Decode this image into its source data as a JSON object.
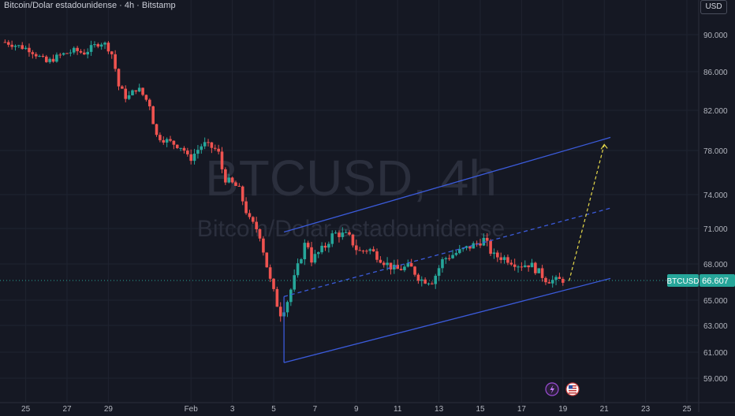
{
  "chart": {
    "legend_text": "Bitcoin/Dolar estadounidense · 4h · Bitstamp",
    "currency_button": "USD",
    "watermark_symbol": "BTCUSD, 4h",
    "watermark_name": "Bitcoin/Dolar estadounidense",
    "symbol_tag": "BTCUSD",
    "last_price_label": "66.607",
    "colors": {
      "background": "#151823",
      "up": "#26a69a",
      "down": "#ef5350",
      "channel": "#3b5bdb",
      "projection": "#e6d94a",
      "tag_bg": "#26a69a"
    },
    "icons": [
      "lightning-icon",
      "us-flag-icon"
    ]
  },
  "chart_data": {
    "type": "candlestick",
    "symbol": "BTCUSD",
    "timeframe": "4h",
    "exchange": "Bitstamp",
    "y_tick_labels": [
      "90.000",
      "86.000",
      "82.000",
      "78.000",
      "74.000",
      "71.000",
      "68.000",
      "65.000",
      "63.000",
      "61.000",
      "59.000"
    ],
    "y_tick_values": [
      90000,
      86000,
      82000,
      78000,
      74000,
      71000,
      68000,
      65000,
      63000,
      61000,
      59000
    ],
    "x_tick_labels": [
      "25",
      "27",
      "29",
      "Feb",
      "3",
      "5",
      "7",
      "9",
      "11",
      "13",
      "15",
      "17",
      "19",
      "21",
      "23",
      "25"
    ],
    "x_tick_days": [
      -7,
      -5,
      -3,
      1,
      3,
      5,
      7,
      9,
      11,
      13,
      15,
      17,
      19,
      21,
      23,
      25
    ],
    "last_price": 66607,
    "close_path": [
      [
        -8.0,
        89200
      ],
      [
        -6.8,
        88400
      ],
      [
        -6.0,
        87000
      ],
      [
        -5.3,
        87800
      ],
      [
        -4.6,
        88300
      ],
      [
        -4.2,
        88000
      ],
      [
        -3.4,
        89200
      ],
      [
        -3.1,
        88900
      ],
      [
        -2.8,
        87800
      ],
      [
        -2.5,
        84500
      ],
      [
        -2.1,
        83200
      ],
      [
        -1.6,
        84400
      ],
      [
        -1.0,
        82600
      ],
      [
        -0.7,
        79500
      ],
      [
        -0.1,
        78900
      ],
      [
        0.6,
        78300
      ],
      [
        0.9,
        77100
      ],
      [
        1.6,
        78700
      ],
      [
        2.3,
        78000
      ],
      [
        2.6,
        75500
      ],
      [
        3.3,
        74600
      ],
      [
        3.8,
        71800
      ],
      [
        4.3,
        70700
      ],
      [
        4.8,
        66800
      ],
      [
        5.3,
        63900
      ],
      [
        5.6,
        64600
      ],
      [
        6.0,
        66800
      ],
      [
        6.6,
        70200
      ],
      [
        6.8,
        68300
      ],
      [
        7.5,
        69500
      ],
      [
        7.9,
        70600
      ],
      [
        8.6,
        70400
      ],
      [
        9.1,
        69000
      ],
      [
        9.6,
        69300
      ],
      [
        10.4,
        68100
      ],
      [
        10.9,
        67500
      ],
      [
        11.6,
        67800
      ],
      [
        12.1,
        66700
      ],
      [
        12.7,
        66600
      ],
      [
        13.2,
        68400
      ],
      [
        13.8,
        68900
      ],
      [
        14.8,
        69700
      ],
      [
        15.2,
        70100
      ],
      [
        15.6,
        68700
      ],
      [
        16.2,
        68500
      ],
      [
        16.9,
        67900
      ],
      [
        17.4,
        68000
      ],
      [
        18.2,
        66700
      ],
      [
        18.7,
        66600
      ],
      [
        19.0,
        66700
      ]
    ],
    "channel_lines": [
      {
        "role": "upper",
        "from": [
          5.5,
          70700
        ],
        "to": [
          21.3,
          79300
        ]
      },
      {
        "role": "median",
        "from": [
          5.5,
          65300
        ],
        "to": [
          21.3,
          72800
        ]
      },
      {
        "role": "lower",
        "from": [
          5.5,
          60200
        ],
        "to": [
          21.3,
          66800
        ]
      },
      {
        "role": "anchor",
        "from": [
          5.5,
          60200
        ],
        "to": [
          5.5,
          65300
        ]
      }
    ],
    "projection_line": {
      "from": [
        19.3,
        66600
      ],
      "to": [
        21.0,
        78600
      ]
    }
  }
}
